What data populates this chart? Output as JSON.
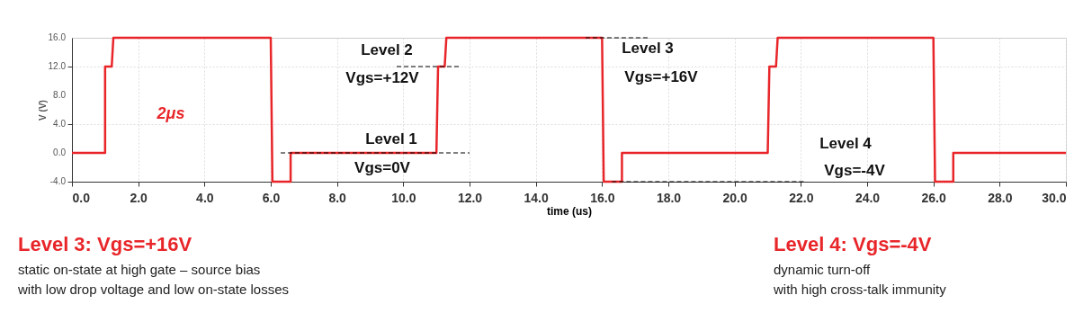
{
  "chart_data": {
    "type": "line",
    "xlabel": "time (us)",
    "ylabel": "V (V)",
    "xlim": [
      0,
      30
    ],
    "ylim": [
      -4,
      16
    ],
    "xticks": [
      {
        "value": 0,
        "label": "0.0"
      },
      {
        "value": 2,
        "label": "2.0"
      },
      {
        "value": 4,
        "label": "4.0"
      },
      {
        "value": 6,
        "label": "6.0"
      },
      {
        "value": 8,
        "label": "8.0"
      },
      {
        "value": 10,
        "label": "10.0"
      },
      {
        "value": 12,
        "label": "12.0"
      },
      {
        "value": 14,
        "label": "14.0"
      },
      {
        "value": 16,
        "label": "16.0"
      },
      {
        "value": 18,
        "label": "18.0"
      },
      {
        "value": 20,
        "label": "20.0"
      },
      {
        "value": 22,
        "label": "22.0"
      },
      {
        "value": 24,
        "label": "24.0"
      },
      {
        "value": 26,
        "label": "26.0"
      },
      {
        "value": 28,
        "label": "28.0"
      },
      {
        "value": 30,
        "label": "30.0"
      }
    ],
    "yticks": [
      {
        "value": -4,
        "label": "-4.0"
      },
      {
        "value": 0,
        "label": "0.0"
      },
      {
        "value": 4,
        "label": "4.0"
      },
      {
        "value": 8,
        "label": "8.0"
      },
      {
        "value": 12,
        "label": "12.0"
      },
      {
        "value": 16,
        "label": "16.0"
      }
    ],
    "grid": true,
    "marker": "none",
    "series": [
      {
        "color": "#e8262a",
        "line_style": "solid",
        "x": [
          0,
          1.0,
          1.0,
          1.2,
          1.25,
          6.0,
          6.05,
          6.6,
          6.6,
          11.0,
          11.05,
          11.25,
          11.3,
          16.0,
          16.05,
          16.6,
          16.6,
          21.0,
          21.05,
          21.25,
          21.3,
          26.0,
          26.05,
          26.6,
          26.6,
          30
        ],
        "values": [
          0,
          0,
          12,
          12,
          16,
          16,
          -4,
          -4,
          0,
          0,
          12,
          12,
          16,
          16,
          -4,
          -4,
          0,
          0,
          12,
          12,
          16,
          16,
          -4,
          -4,
          0,
          0
        ]
      },
      {
        "color": "#000000",
        "line_style": "dashed",
        "x": [
          9.8,
          11.7
        ],
        "values": [
          12,
          12
        ]
      },
      {
        "color": "#000000",
        "line_style": "dashed",
        "x": [
          6.3,
          12.0
        ],
        "values": [
          0,
          0
        ]
      },
      {
        "color": "#000000",
        "line_style": "dashed",
        "x": [
          15.5,
          17.4
        ],
        "values": [
          16,
          16
        ]
      },
      {
        "color": "#000000",
        "line_style": "dashed",
        "x": [
          16.3,
          22.1
        ],
        "values": [
          -4,
          -4
        ]
      }
    ],
    "annotations": [
      "Level 2",
      "Vgs=+12V",
      "Level 1",
      "Vgs=0V",
      "Level 3",
      "Vgs=+16V",
      "Level 4",
      "Vgs=-4V",
      "2μs",
      "Level 3: Vgs=+16V",
      "static on-state at high gate – source bias",
      "with low drop voltage and low on-state losses",
      "Level 4: Vgs=-4V",
      "dynamic turn-off",
      "with high cross-talk immunity"
    ]
  }
}
